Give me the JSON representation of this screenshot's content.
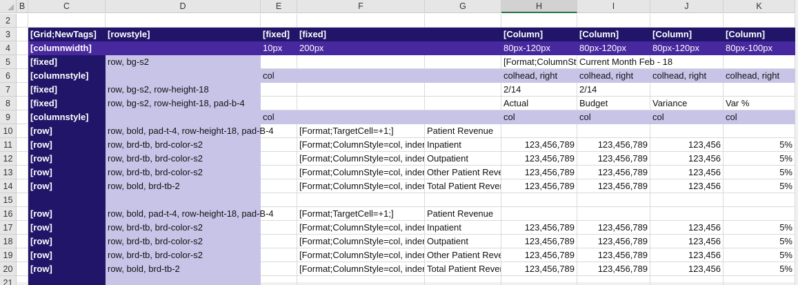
{
  "colors": {
    "navy": "#211569",
    "purple": "#47289e",
    "lavender": "#c8c4e8",
    "grid": "#d9d9d9",
    "selected_col_accent": "#217346"
  },
  "columns": [
    "B",
    "C",
    "D",
    "E",
    "F",
    "G",
    "H",
    "I",
    "J",
    "K"
  ],
  "selected_column": "H",
  "rows": [
    {
      "num": "2",
      "band": "none",
      "cells": {}
    },
    {
      "num": "3",
      "band": "navy",
      "cells": {
        "C": "[Grid;NewTags]",
        "D": "[rowstyle]",
        "E": "[fixed]",
        "F": "[fixed]",
        "H": "[Column]",
        "I": "[Column]",
        "J": "[Column]",
        "K": "[Column]"
      }
    },
    {
      "num": "4",
      "band": "purple",
      "cells": {
        "C": "[columnwidth]",
        "E": "10px",
        "F": "200px",
        "H": "80px-120px",
        "I": "80px-120px",
        "J": "80px-120px",
        "K": "80px-100px"
      }
    },
    {
      "num": "5",
      "band": "none",
      "cells": {
        "C": "[fixed]",
        "D": "row, bg-s2",
        "H": "[Format;ColumnStyle=colhead]",
        "I": "Current Month Feb - 18"
      }
    },
    {
      "num": "6",
      "band": "lavender",
      "cells": {
        "C": "[columnstyle]",
        "E": "col",
        "H": "colhead, right",
        "I": "colhead, right",
        "J": "colhead, right",
        "K": "colhead, right"
      }
    },
    {
      "num": "7",
      "band": "none",
      "cells": {
        "C": "[fixed]",
        "D": "row, bg-s2, row-height-18",
        "H": "2/14",
        "I": "2/14"
      }
    },
    {
      "num": "8",
      "band": "none",
      "cells": {
        "C": "[fixed]",
        "D": "row, bg-s2, row-height-18, pad-b-4",
        "H": "Actual",
        "I": "Budget",
        "J": "Variance",
        "K": "Var %"
      }
    },
    {
      "num": "9",
      "band": "lavender",
      "cells": {
        "C": "[columnstyle]",
        "E": "col",
        "H": "col",
        "I": "col",
        "J": "col",
        "K": "col"
      }
    },
    {
      "num": "10",
      "band": "none",
      "cells": {
        "C": "[row]",
        "D": "row, bold, pad-t-4, row-height-18, pad-B-4",
        "F": "[Format;TargetCell=+1;]",
        "G": "Patient Revenue"
      }
    },
    {
      "num": "11",
      "band": "none",
      "cells": {
        "C": "[row]",
        "D": "row, brd-tb, brd-color-s2",
        "F": "[Format;ColumnStyle=col, indent]",
        "G": "Inpatient",
        "H": "123,456,789",
        "I": "123,456,789",
        "J": "123,456",
        "K": "5%"
      }
    },
    {
      "num": "12",
      "band": "none",
      "cells": {
        "C": "[row]",
        "D": "row, brd-tb, brd-color-s2",
        "F": "[Format;ColumnStyle=col, indent]",
        "G": "Outpatient",
        "H": "123,456,789",
        "I": "123,456,789",
        "J": "123,456",
        "K": "5%"
      }
    },
    {
      "num": "13",
      "band": "none",
      "cells": {
        "C": "[row]",
        "D": "row, brd-tb, brd-color-s2",
        "F": "[Format;ColumnStyle=col, indent]",
        "G": "Other Patient Revenue",
        "H": "123,456,789",
        "I": "123,456,789",
        "J": "123,456",
        "K": "5%"
      }
    },
    {
      "num": "14",
      "band": "none",
      "cells": {
        "C": "[row]",
        "D": "row, bold, brd-tb-2",
        "F": "[Format;ColumnStyle=col, indent]",
        "G": "Total Patient Revenue",
        "H": "123,456,789",
        "I": "123,456,789",
        "J": "123,456",
        "K": "5%"
      }
    },
    {
      "num": "15",
      "band": "none",
      "cells": {}
    },
    {
      "num": "16",
      "band": "none",
      "cells": {
        "C": "[row]",
        "D": "row, bold, pad-t-4, row-height-18, pad-B-4",
        "F": "[Format;TargetCell=+1;]",
        "G": "Patient Revenue"
      }
    },
    {
      "num": "17",
      "band": "none",
      "cells": {
        "C": "[row]",
        "D": "row, brd-tb, brd-color-s2",
        "F": "[Format;ColumnStyle=col, indent]",
        "G": "Inpatient",
        "H": "123,456,789",
        "I": "123,456,789",
        "J": "123,456",
        "K": "5%"
      }
    },
    {
      "num": "18",
      "band": "none",
      "cells": {
        "C": "[row]",
        "D": "row, brd-tb, brd-color-s2",
        "F": "[Format;ColumnStyle=col, indent]",
        "G": "Outpatient",
        "H": "123,456,789",
        "I": "123,456,789",
        "J": "123,456",
        "K": "5%"
      }
    },
    {
      "num": "19",
      "band": "none",
      "cells": {
        "C": "[row]",
        "D": "row, brd-tb, brd-color-s2",
        "F": "[Format;ColumnStyle=col, indent]",
        "G": "Other Patient Revenue",
        "H": "123,456,789",
        "I": "123,456,789",
        "J": "123,456",
        "K": "5%"
      }
    },
    {
      "num": "20",
      "band": "none",
      "cells": {
        "C": "[row]",
        "D": "row, bold, brd-tb-2",
        "F": "[Format;ColumnStyle=col, indent]",
        "G": "Total Patient Revenue",
        "H": "123,456,789",
        "I": "123,456,789",
        "J": "123,456",
        "K": "5%"
      }
    },
    {
      "num": "21",
      "band": "none",
      "cells": {}
    }
  ]
}
